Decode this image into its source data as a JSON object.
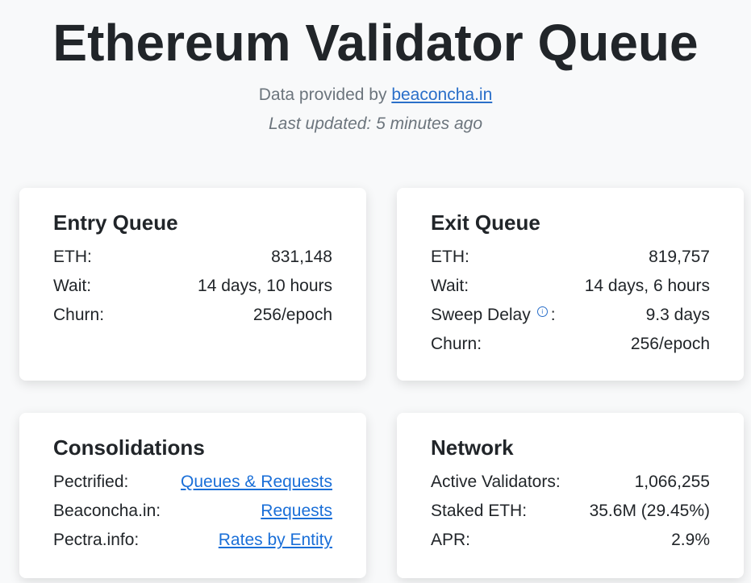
{
  "header": {
    "title": "Ethereum Validator Queue",
    "provided_prefix": "Data provided by ",
    "provider_link": "beaconcha.in",
    "last_updated": "Last updated: 5 minutes ago"
  },
  "entry": {
    "title": "Entry Queue",
    "rows": [
      {
        "label": "ETH:",
        "value": "831,148"
      },
      {
        "label": "Wait:",
        "value": "14 days, 10 hours"
      },
      {
        "label": "Churn:",
        "value": "256/epoch"
      }
    ]
  },
  "exit": {
    "title": "Exit Queue",
    "rows": [
      {
        "label": "ETH:",
        "value": "819,757"
      },
      {
        "label": "Wait:",
        "value": "14 days, 6 hours"
      },
      {
        "label": "Sweep Delay",
        "value": "9.3 days"
      },
      {
        "label": "Churn:",
        "value": "256/epoch"
      }
    ],
    "info_icon": "info-circle-icon"
  },
  "consolidations": {
    "title": "Consolidations",
    "rows": [
      {
        "label": "Pectrified:",
        "link": "Queues & Requests"
      },
      {
        "label": "Beaconcha.in:",
        "link": "Requests"
      },
      {
        "label": "Pectra.info:",
        "link": "Rates by Entity"
      }
    ]
  },
  "network": {
    "title": "Network",
    "rows": [
      {
        "label": "Active Validators:",
        "value": "1,066,255"
      },
      {
        "label": "Staked ETH:",
        "value": "35.6M (29.45%)"
      },
      {
        "label": "APR:",
        "value": "2.9%"
      }
    ]
  }
}
